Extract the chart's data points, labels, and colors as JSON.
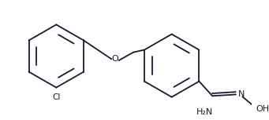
{
  "bg_color": "#ffffff",
  "line_color": "#1a1a2e",
  "line_width": 1.3,
  "figsize": [
    3.41,
    1.53
  ],
  "dpi": 100,
  "xlim": [
    0,
    341
  ],
  "ylim": [
    0,
    153
  ]
}
